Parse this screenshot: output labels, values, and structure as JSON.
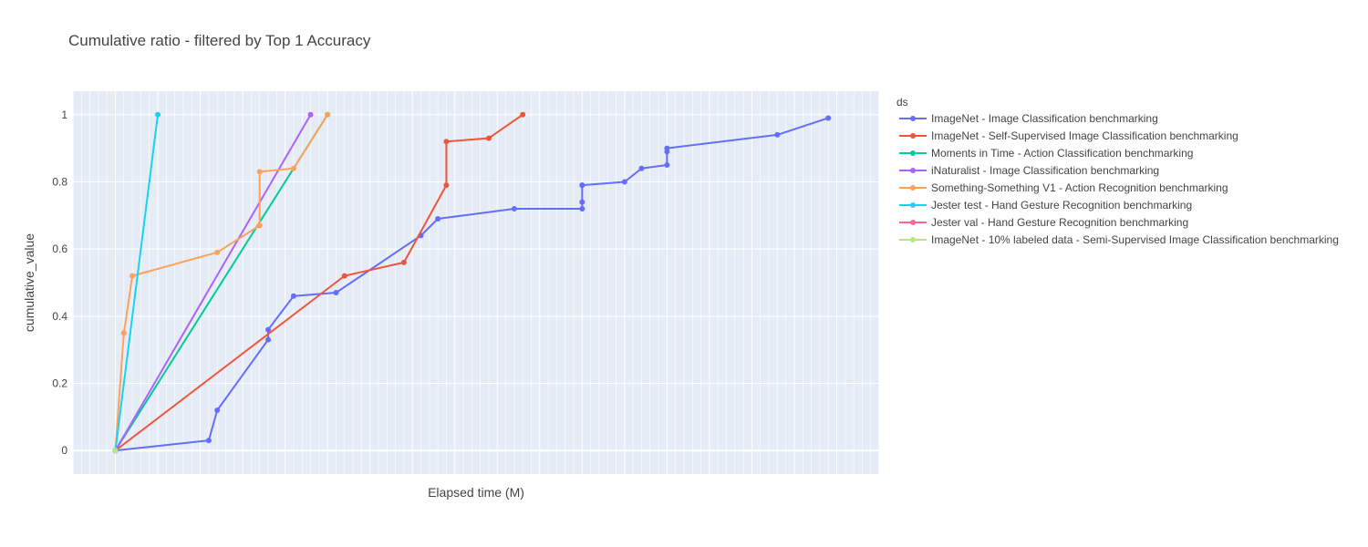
{
  "chart_data": {
    "type": "line",
    "title": "Cumulative ratio - filtered by Top 1 Accuracy",
    "xlabel": "Elapsed time (M)",
    "ylabel": "cumulative_value",
    "xlim": [
      -5,
      90
    ],
    "ylim": [
      -0.07,
      1.07
    ],
    "yticks": [
      0,
      0.2,
      0.4,
      0.6,
      0.8,
      1
    ],
    "ytick_labels": [
      "0",
      "0.2",
      "0.4",
      "0.6",
      "0.8",
      "1"
    ],
    "x_minor_grid_step": 1,
    "x_major_grid_step": 5,
    "grid": true,
    "plot_background": "#E5ECF6",
    "legend_title": "ds",
    "legend_placement": "right",
    "series": [
      {
        "name": "ImageNet - Image Classification benchmarking",
        "color": "#636EFA",
        "x": [
          0,
          11,
          12,
          18,
          18,
          21,
          26,
          36,
          38,
          47,
          55,
          55,
          55,
          55,
          60,
          62,
          65,
          65,
          65,
          78,
          84
        ],
        "y": [
          0,
          0.03,
          0.12,
          0.33,
          0.36,
          0.46,
          0.47,
          0.64,
          0.69,
          0.72,
          0.72,
          0.74,
          0.79,
          0.79,
          0.8,
          0.84,
          0.85,
          0.89,
          0.9,
          0.94,
          0.99
        ]
      },
      {
        "name": "ImageNet - Self-Supervised Image Classification benchmarking",
        "color": "#EF553B",
        "x": [
          0,
          27,
          34,
          39,
          39,
          44,
          48
        ],
        "y": [
          0,
          0.52,
          0.56,
          0.79,
          0.92,
          0.93,
          1.0
        ]
      },
      {
        "name": "Moments in Time - Action Classification benchmarking",
        "color": "#00CC96",
        "x": [
          0,
          25
        ],
        "y": [
          0,
          1.0
        ]
      },
      {
        "name": "iNaturalist - Image Classification benchmarking",
        "color": "#AB63FA",
        "x": [
          0,
          23
        ],
        "y": [
          0,
          1.0
        ]
      },
      {
        "name": "Something-Something V1 - Action Recognition benchmarking",
        "color": "#FFA15A",
        "x": [
          0,
          1,
          2,
          12,
          17,
          17,
          21,
          25
        ],
        "y": [
          0,
          0.35,
          0.52,
          0.59,
          0.67,
          0.83,
          0.84,
          1.0
        ]
      },
      {
        "name": "Jester test - Hand Gesture Recognition benchmarking",
        "color": "#19D3F3",
        "x": [
          0,
          5
        ],
        "y": [
          0,
          1.0
        ]
      },
      {
        "name": "Jester val - Hand Gesture Recognition benchmarking",
        "color": "#FF6692",
        "x": [
          0
        ],
        "y": [
          0
        ]
      },
      {
        "name": "ImageNet - 10% labeled data - Semi-Supervised Image Classification benchmarking",
        "color": "#B6E880",
        "x": [
          0
        ],
        "y": [
          0
        ]
      }
    ]
  }
}
